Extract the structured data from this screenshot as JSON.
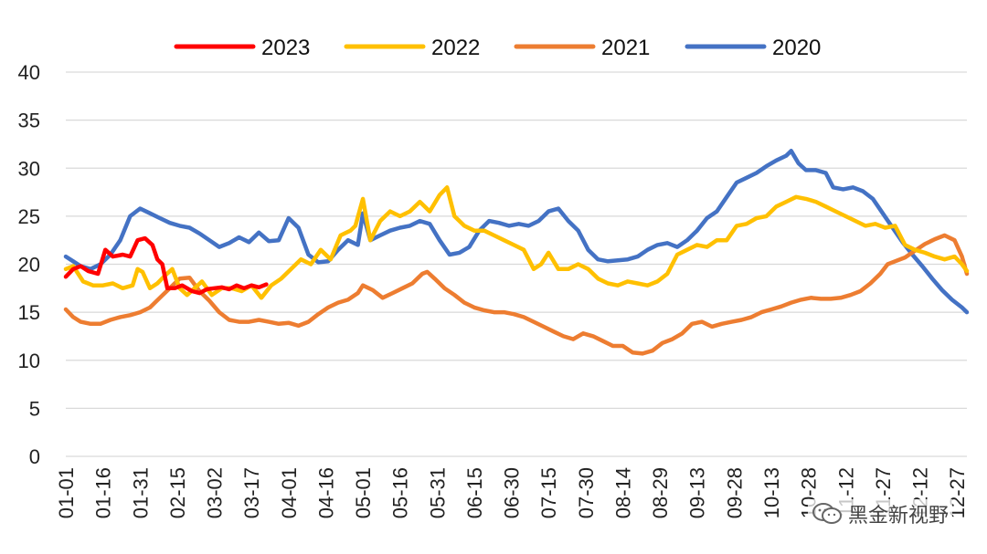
{
  "chart_data": {
    "type": "line",
    "xlabel": "",
    "ylabel": "",
    "ylim": [
      0,
      40
    ],
    "yticks": [
      "0",
      "5",
      "10",
      "15",
      "20",
      "25",
      "30",
      "35",
      "40"
    ],
    "xticks": [
      "01-01",
      "01-16",
      "01-31",
      "02-15",
      "03-02",
      "03-17",
      "04-01",
      "04-16",
      "05-01",
      "05-16",
      "05-31",
      "06-15",
      "06-30",
      "07-15",
      "07-30",
      "08-14",
      "08-29",
      "09-13",
      "09-28",
      "10-13",
      "10-28",
      "11-12",
      "11-27",
      "12-12",
      "12-27"
    ],
    "grid": true,
    "legend_position": "top-center",
    "x_unit": "day of year",
    "series": [
      {
        "name": "2023",
        "color": "#FF0000",
        "points": [
          [
            1,
            18.7
          ],
          [
            4,
            19.5
          ],
          [
            7,
            19.8
          ],
          [
            10,
            19.3
          ],
          [
            14,
            19.0
          ],
          [
            17,
            21.5
          ],
          [
            20,
            20.8
          ],
          [
            24,
            21.0
          ],
          [
            27,
            20.8
          ],
          [
            30,
            22.5
          ],
          [
            33,
            22.7
          ],
          [
            36,
            22.0
          ],
          [
            38,
            20.5
          ],
          [
            40,
            20.0
          ],
          [
            42,
            17.5
          ],
          [
            45,
            17.5
          ],
          [
            48,
            17.8
          ],
          [
            52,
            17.2
          ],
          [
            55,
            17.0
          ],
          [
            58,
            17.4
          ],
          [
            61,
            17.5
          ],
          [
            64,
            17.6
          ],
          [
            67,
            17.4
          ],
          [
            70,
            17.8
          ],
          [
            73,
            17.5
          ],
          [
            76,
            17.8
          ],
          [
            79,
            17.6
          ],
          [
            82,
            17.9
          ]
        ]
      },
      {
        "name": "2022",
        "color": "#FFC000",
        "points": [
          [
            1,
            19.5
          ],
          [
            4,
            19.8
          ],
          [
            8,
            18.2
          ],
          [
            12,
            17.8
          ],
          [
            16,
            17.8
          ],
          [
            20,
            18.0
          ],
          [
            24,
            17.5
          ],
          [
            28,
            17.8
          ],
          [
            30,
            19.5
          ],
          [
            32,
            19.2
          ],
          [
            35,
            17.5
          ],
          [
            38,
            18.0
          ],
          [
            41,
            18.8
          ],
          [
            44,
            19.5
          ],
          [
            47,
            17.5
          ],
          [
            50,
            16.8
          ],
          [
            53,
            17.5
          ],
          [
            56,
            18.2
          ],
          [
            60,
            16.8
          ],
          [
            64,
            17.5
          ],
          [
            68,
            17.5
          ],
          [
            72,
            17.2
          ],
          [
            76,
            17.8
          ],
          [
            80,
            16.5
          ],
          [
            84,
            17.8
          ],
          [
            88,
            18.5
          ],
          [
            92,
            19.5
          ],
          [
            96,
            20.5
          ],
          [
            100,
            20.0
          ],
          [
            104,
            21.5
          ],
          [
            108,
            20.5
          ],
          [
            112,
            23.0
          ],
          [
            116,
            23.5
          ],
          [
            118,
            24.0
          ],
          [
            121,
            26.8
          ],
          [
            124,
            22.5
          ],
          [
            128,
            24.5
          ],
          [
            132,
            25.5
          ],
          [
            136,
            25.0
          ],
          [
            140,
            25.5
          ],
          [
            144,
            26.5
          ],
          [
            148,
            25.5
          ],
          [
            152,
            27.2
          ],
          [
            155,
            28.0
          ],
          [
            158,
            25.0
          ],
          [
            162,
            24.0
          ],
          [
            166,
            23.5
          ],
          [
            170,
            23.5
          ],
          [
            174,
            23.0
          ],
          [
            178,
            22.5
          ],
          [
            182,
            22.0
          ],
          [
            186,
            21.5
          ],
          [
            190,
            19.5
          ],
          [
            193,
            20.0
          ],
          [
            196,
            21.2
          ],
          [
            200,
            19.5
          ],
          [
            204,
            19.5
          ],
          [
            208,
            20.0
          ],
          [
            212,
            19.5
          ],
          [
            216,
            18.5
          ],
          [
            220,
            18.0
          ],
          [
            224,
            17.8
          ],
          [
            228,
            18.2
          ],
          [
            232,
            18.0
          ],
          [
            236,
            17.8
          ],
          [
            240,
            18.2
          ],
          [
            244,
            19.0
          ],
          [
            248,
            21.0
          ],
          [
            252,
            21.5
          ],
          [
            256,
            22.0
          ],
          [
            260,
            21.8
          ],
          [
            264,
            22.5
          ],
          [
            268,
            22.5
          ],
          [
            272,
            24.0
          ],
          [
            276,
            24.2
          ],
          [
            280,
            24.8
          ],
          [
            284,
            25.0
          ],
          [
            288,
            26.0
          ],
          [
            292,
            26.5
          ],
          [
            296,
            27.0
          ],
          [
            300,
            26.8
          ],
          [
            304,
            26.5
          ],
          [
            308,
            26.0
          ],
          [
            312,
            25.5
          ],
          [
            316,
            25.0
          ],
          [
            320,
            24.5
          ],
          [
            324,
            24.0
          ],
          [
            328,
            24.2
          ],
          [
            332,
            23.8
          ],
          [
            336,
            24.0
          ],
          [
            340,
            22.0
          ],
          [
            344,
            21.5
          ],
          [
            348,
            21.2
          ],
          [
            352,
            20.8
          ],
          [
            356,
            20.5
          ],
          [
            360,
            20.8
          ],
          [
            363,
            20.0
          ],
          [
            365,
            19.3
          ]
        ]
      },
      {
        "name": "2021",
        "color": "#ED7D31",
        "points": [
          [
            1,
            15.3
          ],
          [
            4,
            14.5
          ],
          [
            7,
            14.0
          ],
          [
            11,
            13.8
          ],
          [
            15,
            13.8
          ],
          [
            19,
            14.2
          ],
          [
            23,
            14.5
          ],
          [
            27,
            14.7
          ],
          [
            31,
            15.0
          ],
          [
            35,
            15.5
          ],
          [
            39,
            16.5
          ],
          [
            43,
            17.5
          ],
          [
            47,
            18.5
          ],
          [
            51,
            18.6
          ],
          [
            55,
            17.2
          ],
          [
            59,
            16.2
          ],
          [
            63,
            15.0
          ],
          [
            67,
            14.2
          ],
          [
            71,
            14.0
          ],
          [
            75,
            14.0
          ],
          [
            79,
            14.2
          ],
          [
            83,
            14.0
          ],
          [
            87,
            13.8
          ],
          [
            91,
            13.9
          ],
          [
            95,
            13.6
          ],
          [
            99,
            14.0
          ],
          [
            103,
            14.8
          ],
          [
            107,
            15.5
          ],
          [
            111,
            16.0
          ],
          [
            115,
            16.3
          ],
          [
            119,
            17.0
          ],
          [
            121,
            17.8
          ],
          [
            125,
            17.3
          ],
          [
            129,
            16.5
          ],
          [
            133,
            17.0
          ],
          [
            137,
            17.5
          ],
          [
            141,
            18.0
          ],
          [
            145,
            19.0
          ],
          [
            147,
            19.2
          ],
          [
            150,
            18.5
          ],
          [
            154,
            17.5
          ],
          [
            158,
            16.8
          ],
          [
            162,
            16.0
          ],
          [
            166,
            15.5
          ],
          [
            170,
            15.2
          ],
          [
            174,
            15.0
          ],
          [
            178,
            15.0
          ],
          [
            182,
            14.8
          ],
          [
            186,
            14.5
          ],
          [
            190,
            14.0
          ],
          [
            194,
            13.5
          ],
          [
            198,
            13.0
          ],
          [
            202,
            12.5
          ],
          [
            206,
            12.2
          ],
          [
            210,
            12.8
          ],
          [
            214,
            12.5
          ],
          [
            218,
            12.0
          ],
          [
            222,
            11.5
          ],
          [
            226,
            11.5
          ],
          [
            230,
            10.8
          ],
          [
            234,
            10.7
          ],
          [
            238,
            11.0
          ],
          [
            242,
            11.8
          ],
          [
            246,
            12.2
          ],
          [
            250,
            12.8
          ],
          [
            254,
            13.8
          ],
          [
            258,
            14.0
          ],
          [
            262,
            13.5
          ],
          [
            266,
            13.8
          ],
          [
            270,
            14.0
          ],
          [
            274,
            14.2
          ],
          [
            278,
            14.5
          ],
          [
            282,
            15.0
          ],
          [
            286,
            15.3
          ],
          [
            290,
            15.6
          ],
          [
            294,
            16.0
          ],
          [
            298,
            16.3
          ],
          [
            302,
            16.5
          ],
          [
            306,
            16.4
          ],
          [
            310,
            16.4
          ],
          [
            314,
            16.5
          ],
          [
            318,
            16.8
          ],
          [
            322,
            17.2
          ],
          [
            326,
            18.0
          ],
          [
            330,
            19.0
          ],
          [
            333,
            20.0
          ],
          [
            336,
            20.3
          ],
          [
            340,
            20.7
          ],
          [
            344,
            21.4
          ],
          [
            348,
            22.1
          ],
          [
            352,
            22.6
          ],
          [
            356,
            23.0
          ],
          [
            360,
            22.5
          ],
          [
            363,
            20.8
          ],
          [
            365,
            19.0
          ]
        ]
      },
      {
        "name": "2020",
        "color": "#4472C4",
        "points": [
          [
            1,
            20.8
          ],
          [
            4,
            20.3
          ],
          [
            7,
            19.8
          ],
          [
            11,
            19.5
          ],
          [
            15,
            20.0
          ],
          [
            19,
            21.0
          ],
          [
            23,
            22.5
          ],
          [
            27,
            25.0
          ],
          [
            31,
            25.8
          ],
          [
            35,
            25.3
          ],
          [
            39,
            24.8
          ],
          [
            43,
            24.3
          ],
          [
            47,
            24.0
          ],
          [
            51,
            23.8
          ],
          [
            55,
            23.2
          ],
          [
            59,
            22.5
          ],
          [
            63,
            21.8
          ],
          [
            67,
            22.2
          ],
          [
            71,
            22.8
          ],
          [
            75,
            22.3
          ],
          [
            79,
            23.3
          ],
          [
            83,
            22.4
          ],
          [
            87,
            22.5
          ],
          [
            91,
            24.8
          ],
          [
            95,
            23.8
          ],
          [
            99,
            21.0
          ],
          [
            103,
            20.2
          ],
          [
            107,
            20.3
          ],
          [
            111,
            21.5
          ],
          [
            115,
            22.5
          ],
          [
            119,
            22.0
          ],
          [
            121,
            25.3
          ],
          [
            124,
            22.5
          ],
          [
            128,
            23.0
          ],
          [
            132,
            23.5
          ],
          [
            136,
            23.8
          ],
          [
            140,
            24.0
          ],
          [
            144,
            24.5
          ],
          [
            148,
            24.2
          ],
          [
            152,
            22.5
          ],
          [
            156,
            21.0
          ],
          [
            160,
            21.2
          ],
          [
            164,
            21.8
          ],
          [
            168,
            23.5
          ],
          [
            172,
            24.5
          ],
          [
            176,
            24.3
          ],
          [
            180,
            24.0
          ],
          [
            184,
            24.2
          ],
          [
            188,
            24.0
          ],
          [
            192,
            24.5
          ],
          [
            196,
            25.5
          ],
          [
            200,
            25.8
          ],
          [
            204,
            24.5
          ],
          [
            208,
            23.5
          ],
          [
            212,
            21.5
          ],
          [
            216,
            20.5
          ],
          [
            220,
            20.3
          ],
          [
            224,
            20.4
          ],
          [
            228,
            20.5
          ],
          [
            232,
            20.8
          ],
          [
            236,
            21.5
          ],
          [
            240,
            22.0
          ],
          [
            244,
            22.2
          ],
          [
            248,
            21.8
          ],
          [
            252,
            22.5
          ],
          [
            256,
            23.5
          ],
          [
            260,
            24.8
          ],
          [
            264,
            25.5
          ],
          [
            268,
            27.0
          ],
          [
            272,
            28.5
          ],
          [
            276,
            29.0
          ],
          [
            280,
            29.5
          ],
          [
            284,
            30.2
          ],
          [
            288,
            30.8
          ],
          [
            292,
            31.3
          ],
          [
            294,
            31.8
          ],
          [
            297,
            30.5
          ],
          [
            300,
            29.8
          ],
          [
            304,
            29.8
          ],
          [
            308,
            29.5
          ],
          [
            311,
            28.0
          ],
          [
            315,
            27.8
          ],
          [
            319,
            28.0
          ],
          [
            323,
            27.6
          ],
          [
            327,
            26.8
          ],
          [
            331,
            25.3
          ],
          [
            335,
            23.8
          ],
          [
            339,
            22.3
          ],
          [
            343,
            21.0
          ],
          [
            347,
            19.8
          ],
          [
            351,
            18.5
          ],
          [
            355,
            17.3
          ],
          [
            359,
            16.3
          ],
          [
            363,
            15.5
          ],
          [
            365,
            15.0
          ]
        ]
      }
    ]
  },
  "watermark": {
    "text": "黑金新视野"
  }
}
